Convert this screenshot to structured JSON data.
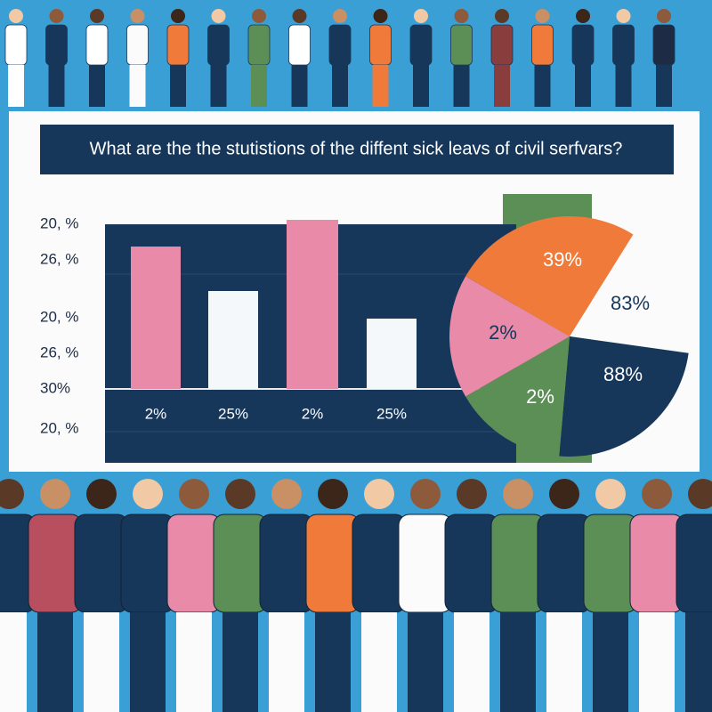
{
  "title": "What are the the stutistions of the diffent sick leavs of civil serfvars?",
  "y_labels": [
    "20, %",
    "26, %",
    "20, %",
    "26, %",
    "30%",
    "20, %"
  ],
  "bar_labels": [
    "2%",
    "25%",
    "2%",
    "25%"
  ],
  "pie_labels": [
    "39%",
    "83%",
    "2%",
    "88%",
    "2%"
  ]
}
